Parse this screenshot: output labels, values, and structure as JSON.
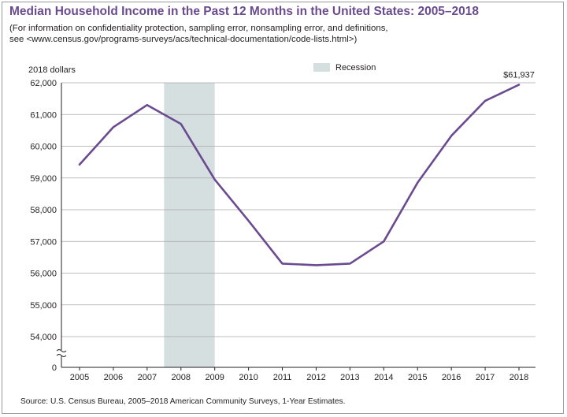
{
  "chart_data": {
    "type": "line",
    "title": "Median Household Income in the Past 12 Months in the United States: 2005–2018",
    "subtitle_lines": [
      "(For information on confidentiality protection, sampling error, nonsampling error, and definitions,",
      "see <www.census.gov/programs-surveys/acs/technical-documentation/code-lists.html>)"
    ],
    "ylabel": "2018 dollars",
    "ylim": [
      53500,
      62000
    ],
    "y_ticks": [
      {
        "value": 62000,
        "label": "62,000"
      },
      {
        "value": 61000,
        "label": "61,000"
      },
      {
        "value": 60000,
        "label": "60,000"
      },
      {
        "value": 59000,
        "label": "59,000"
      },
      {
        "value": 58000,
        "label": "58,000"
      },
      {
        "value": 57000,
        "label": "57,000"
      },
      {
        "value": 56000,
        "label": "56,000"
      },
      {
        "value": 55000,
        "label": "55,000"
      },
      {
        "value": 54000,
        "label": "54,000"
      }
    ],
    "y_axis_origin_label": "0",
    "y_axis_break": true,
    "x": [
      "2005",
      "2006",
      "2007",
      "2008",
      "2009",
      "2010",
      "2011",
      "2012",
      "2013",
      "2014",
      "2015",
      "2016",
      "2017",
      "2018"
    ],
    "series": [
      {
        "values": [
          59420,
          60600,
          61300,
          60700,
          58950,
          57650,
          56300,
          56250,
          56300,
          57000,
          58850,
          60330,
          61430,
          61937
        ],
        "color": "#6a4b8f"
      }
    ],
    "shaded_regions": [
      {
        "label": "Recession",
        "from": 2007.5,
        "to": 2009.0,
        "color": "#d5dfe0"
      }
    ],
    "legend": {
      "label": "Recession",
      "placement": "top-center"
    },
    "annotations": [
      {
        "text": "$61,937",
        "x": "2018",
        "y": 61937
      }
    ],
    "grid": "horizontal",
    "gridline_color": "#a8a8a8",
    "source": "Source: U.S. Census Bureau, 2005–2018 American Community Surveys, 1-Year Estimates."
  }
}
